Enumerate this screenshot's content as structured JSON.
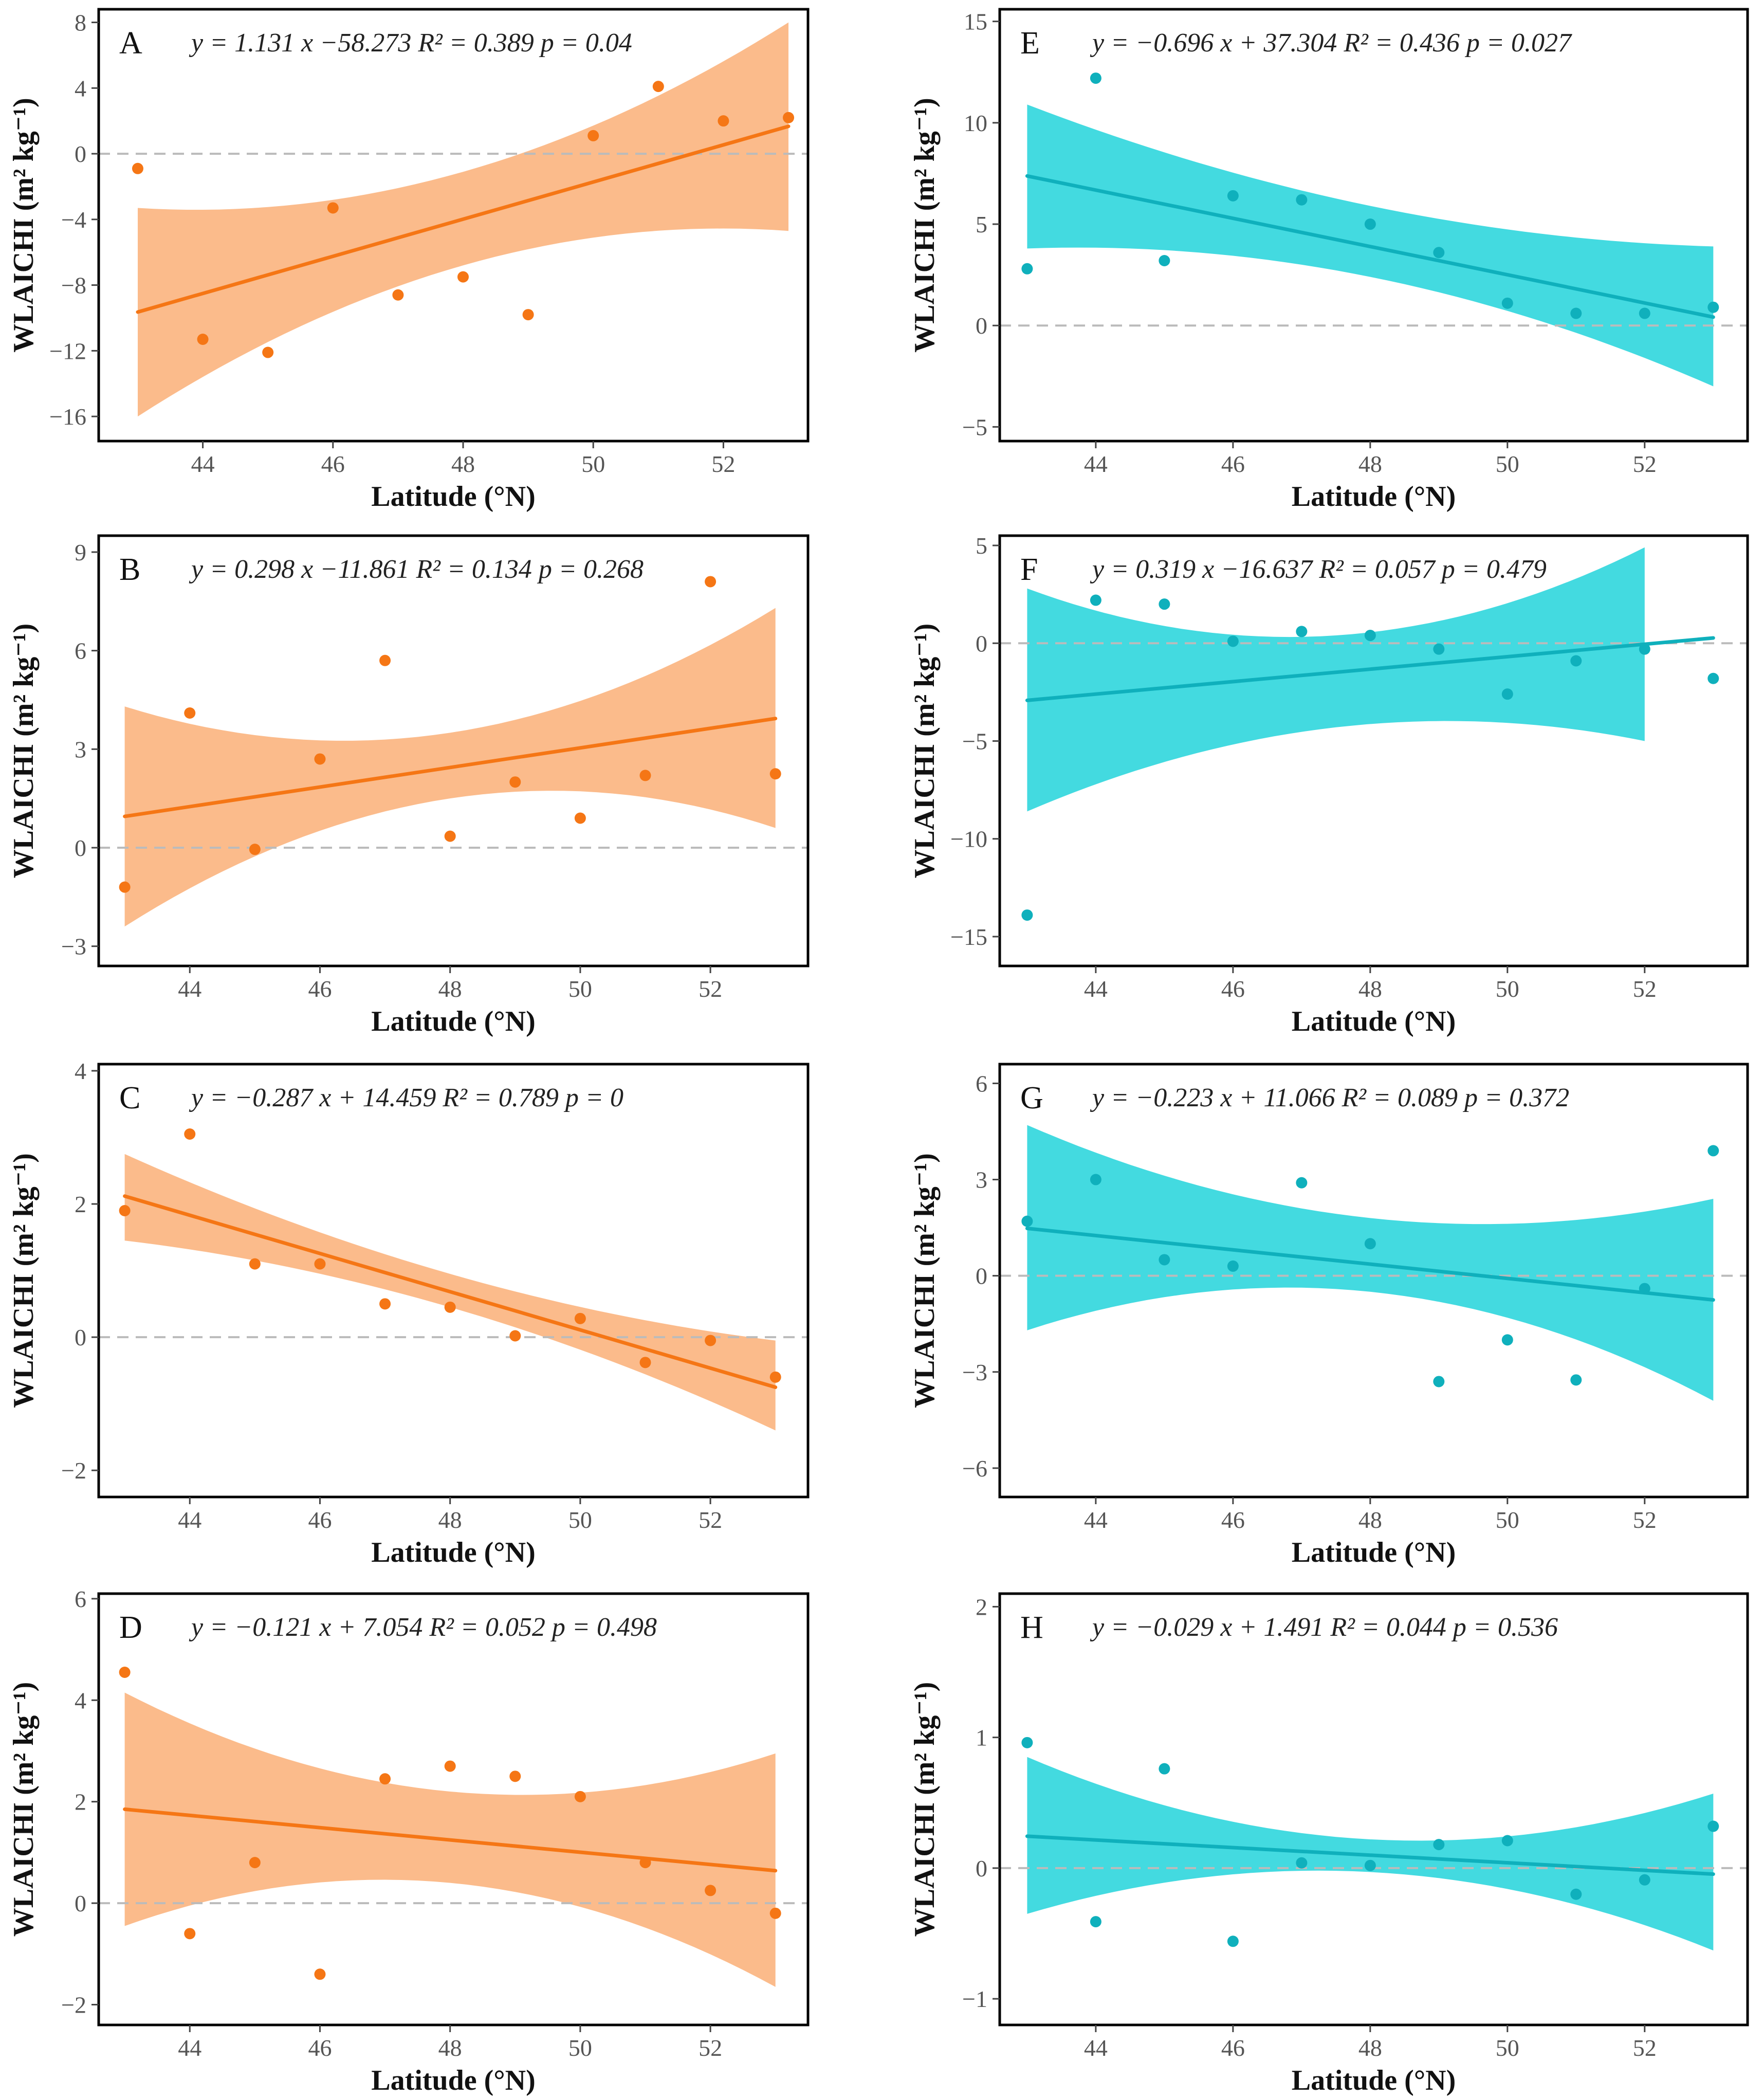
{
  "figure": {
    "colors": {
      "orange": "#F57615",
      "orange_band": "#FBB47E",
      "cyan": "#0FB0BC",
      "cyan_band": "#2FD6DD",
      "zero_line": "#BBBBBB",
      "axis": "#000000"
    }
  },
  "chart_data": [
    {
      "panel": "A",
      "type": "scatter",
      "color_scheme": "orange",
      "equation": "y = 1.131 x −58.273   R² = 0.389   p = 0.04",
      "xlabel": "Latitude (°N)",
      "ylabel": "WLAICHI (m² kg⁻¹)",
      "xlim": [
        42.4,
        53.3
      ],
      "ylim": [
        -17.5,
        8.8
      ],
      "xticks": [
        44,
        46,
        48,
        50,
        52
      ],
      "yticks": [
        -16,
        -12,
        -8,
        -4,
        0,
        4,
        8
      ],
      "ytick_labels": [
        "−16",
        "−12",
        "−8",
        "−4",
        "0",
        "4",
        "8"
      ],
      "x": [
        43,
        44,
        45,
        46,
        47,
        48,
        49,
        50,
        51,
        52,
        53
      ],
      "y": [
        -0.9,
        -11.3,
        -12.1,
        -3.3,
        -8.6,
        -7.5,
        -9.8,
        1.1,
        4.1,
        2.0,
        2.2
      ],
      "fit": {
        "slope": 1.131,
        "intercept": -58.273,
        "x_range": [
          43,
          53
        ]
      },
      "band": {
        "x": [
          43,
          48,
          53
        ],
        "lower": [
          -16.0,
          -6.8,
          -4.7
        ],
        "upper": [
          -3.3,
          -1.1,
          8.0
        ]
      }
    },
    {
      "panel": "B",
      "type": "scatter",
      "color_scheme": "orange",
      "equation": "y = 0.298 x −11.861   R² = 0.134   p = 0.268",
      "xlabel": "Latitude (°N)",
      "ylabel": "WLAICHI (m² kg⁻¹)",
      "xlim": [
        42.6,
        53.5
      ],
      "ylim": [
        -3.6,
        9.5
      ],
      "xticks": [
        44,
        46,
        48,
        50,
        52
      ],
      "yticks": [
        -3,
        0,
        3,
        6,
        9
      ],
      "ytick_labels": [
        "−3",
        "0",
        "3",
        "6",
        "9"
      ],
      "x": [
        43,
        44,
        45,
        46,
        47,
        48,
        49,
        50,
        51,
        52,
        53
      ],
      "y": [
        -1.2,
        4.1,
        -0.05,
        2.7,
        5.7,
        0.35,
        2.0,
        0.9,
        2.2,
        8.1,
        2.25
      ],
      "fit": {
        "slope": 0.298,
        "intercept": -11.861,
        "x_range": [
          43,
          53
        ]
      },
      "band": {
        "x": [
          43,
          48,
          53
        ],
        "lower": [
          -2.4,
          1.5,
          0.6
        ],
        "upper": [
          4.3,
          3.5,
          7.3
        ]
      }
    },
    {
      "panel": "C",
      "type": "scatter",
      "color_scheme": "orange",
      "equation": "y = −0.287 x + 14.459   R² = 0.789   p = 0",
      "xlabel": "Latitude (°N)",
      "ylabel": "WLAICHI (m² kg⁻¹)",
      "xlim": [
        42.6,
        53.5
      ],
      "ylim": [
        -2.4,
        4.1
      ],
      "xticks": [
        44,
        46,
        48,
        50,
        52
      ],
      "yticks": [
        -2,
        0,
        2,
        4
      ],
      "ytick_labels": [
        "−2",
        "0",
        "2",
        "4"
      ],
      "x": [
        43,
        44,
        45,
        46,
        47,
        48,
        49,
        50,
        51,
        52,
        53
      ],
      "y": [
        1.9,
        3.05,
        1.1,
        1.1,
        0.5,
        0.45,
        0.02,
        0.28,
        -0.38,
        -0.05,
        -0.6
      ],
      "fit": {
        "slope": -0.287,
        "intercept": 14.459,
        "x_range": [
          43,
          53
        ]
      },
      "band": {
        "x": [
          43,
          48,
          53
        ],
        "lower": [
          1.45,
          0.45,
          -1.4
        ],
        "upper": [
          2.75,
          0.95,
          -0.05
        ]
      }
    },
    {
      "panel": "D",
      "type": "scatter",
      "color_scheme": "orange",
      "equation": "y = −0.121 x + 7.054   R² = 0.052   p = 0.498",
      "xlabel": "Latitude (°N)",
      "ylabel": "WLAICHI (m² kg⁻¹)",
      "xlim": [
        42.6,
        53.5
      ],
      "ylim": [
        -2.4,
        6.1
      ],
      "xticks": [
        44,
        46,
        48,
        50,
        52
      ],
      "yticks": [
        -2,
        0,
        2,
        4,
        6
      ],
      "ytick_labels": [
        "−2",
        "0",
        "2",
        "4",
        "6"
      ],
      "x": [
        43,
        44,
        45,
        46,
        47,
        48,
        49,
        50,
        51,
        52,
        53
      ],
      "y": [
        4.55,
        -0.6,
        0.8,
        -1.4,
        2.45,
        2.7,
        2.5,
        2.1,
        0.8,
        0.25,
        -0.2
      ],
      "fit": {
        "slope": -0.121,
        "intercept": 7.054,
        "x_range": [
          43,
          53
        ]
      },
      "band": {
        "x": [
          43,
          48,
          53
        ],
        "lower": [
          -0.45,
          0.4,
          -1.65
        ],
        "upper": [
          4.15,
          2.2,
          2.95
        ]
      }
    },
    {
      "panel": "E",
      "type": "scatter",
      "color_scheme": "cyan",
      "equation": "y = −0.696 x + 37.304   R² = 0.436   p = 0.027",
      "xlabel": "Latitude (°N)",
      "ylabel": "WLAICHI (m² kg⁻¹)",
      "xlim": [
        42.6,
        53.5
      ],
      "ylim": [
        -5.7,
        15.6
      ],
      "xticks": [
        44,
        46,
        48,
        50,
        52
      ],
      "yticks": [
        -5,
        0,
        5,
        10,
        15
      ],
      "ytick_labels": [
        "−5",
        "0",
        "5",
        "10",
        "15"
      ],
      "x": [
        43,
        44,
        45,
        46,
        47,
        48,
        49,
        50,
        51,
        52,
        53
      ],
      "y": [
        2.8,
        12.2,
        3.2,
        6.4,
        6.2,
        5.0,
        3.6,
        1.1,
        0.6,
        0.6,
        0.9
      ],
      "fit": {
        "slope": -0.696,
        "intercept": 37.304,
        "x_range": [
          43,
          53
        ]
      },
      "band": {
        "x": [
          43,
          48,
          53
        ],
        "lower": [
          3.8,
          2.4,
          -3.0
        ],
        "upper": [
          10.9,
          5.9,
          3.9
        ]
      }
    },
    {
      "panel": "F",
      "type": "scatter",
      "color_scheme": "cyan",
      "equation": "y = 0.319 x −16.637   R² = 0.057   p = 0.479",
      "xlabel": "Latitude (°N)",
      "ylabel": "WLAICHI (m² kg⁻¹)",
      "xlim": [
        42.6,
        53.5
      ],
      "ylim": [
        -16.5,
        5.5
      ],
      "xticks": [
        44,
        46,
        48,
        50,
        52
      ],
      "yticks": [
        -15,
        -10,
        -5,
        0,
        5
      ],
      "ytick_labels": [
        "−15",
        "−10",
        "−5",
        "0",
        "5"
      ],
      "x": [
        43,
        44,
        45,
        46,
        47,
        48,
        49,
        50,
        51,
        52,
        53
      ],
      "y": [
        -13.9,
        2.2,
        2.0,
        0.1,
        0.6,
        0.4,
        -0.3,
        -2.6,
        -0.9,
        -0.3,
        -1.8
      ],
      "fit": {
        "slope": 0.319,
        "intercept": -16.637,
        "x_range": [
          43,
          53
        ]
      },
      "band": {
        "x": [
          43,
          47.5,
          52
        ],
        "lower": [
          -8.6,
          -4.3,
          -5.0
        ],
        "upper": [
          2.8,
          0.4,
          4.9
        ]
      }
    },
    {
      "panel": "G",
      "type": "scatter",
      "color_scheme": "cyan",
      "equation": "y = −0.223 x + 11.066   R² = 0.089   p = 0.372",
      "xlabel": "Latitude (°N)",
      "ylabel": "WLAICHI (m² kg⁻¹)",
      "xlim": [
        42.6,
        53.5
      ],
      "ylim": [
        -6.9,
        6.6
      ],
      "xticks": [
        44,
        46,
        48,
        50,
        52
      ],
      "yticks": [
        -6,
        -3,
        0,
        3,
        6
      ],
      "ytick_labels": [
        "−6",
        "−3",
        "0",
        "3",
        "6"
      ],
      "x": [
        43,
        44,
        45,
        46,
        47,
        48,
        49,
        50,
        51,
        52,
        53
      ],
      "y": [
        1.7,
        3.0,
        0.5,
        0.3,
        2.9,
        1.0,
        -3.3,
        -2.0,
        -3.25,
        -0.4,
        3.9
      ],
      "fit": {
        "slope": -0.223,
        "intercept": 11.066,
        "x_range": [
          43,
          53
        ]
      },
      "band": {
        "x": [
          43,
          48,
          53
        ],
        "lower": [
          -1.7,
          -0.5,
          -3.9
        ],
        "upper": [
          4.7,
          1.8,
          2.4
        ]
      }
    },
    {
      "panel": "H",
      "type": "scatter",
      "color_scheme": "cyan",
      "equation": "y = −0.029 x + 1.491   R² = 0.044   p = 0.536",
      "xlabel": "Latitude (°N)",
      "ylabel": "WLAICHI (m² kg⁻¹)",
      "xlim": [
        42.6,
        53.5
      ],
      "ylim": [
        -1.2,
        2.1
      ],
      "xticks": [
        44,
        46,
        48,
        50,
        52
      ],
      "yticks": [
        -1,
        0,
        1,
        2
      ],
      "ytick_labels": [
        "−1",
        "0",
        "1",
        "2"
      ],
      "x": [
        43,
        44,
        45,
        46,
        47,
        48,
        49,
        50,
        51,
        52,
        53
      ],
      "y": [
        0.96,
        -0.41,
        0.76,
        -0.56,
        0.04,
        0.02,
        0.18,
        0.21,
        -0.2,
        -0.09,
        0.32
      ],
      "fit": {
        "slope": -0.029,
        "intercept": 1.491,
        "x_range": [
          43,
          53
        ]
      },
      "band": {
        "x": [
          43,
          48,
          53
        ],
        "lower": [
          -0.35,
          -0.03,
          -0.63
        ],
        "upper": [
          0.85,
          0.22,
          0.57
        ]
      }
    }
  ]
}
